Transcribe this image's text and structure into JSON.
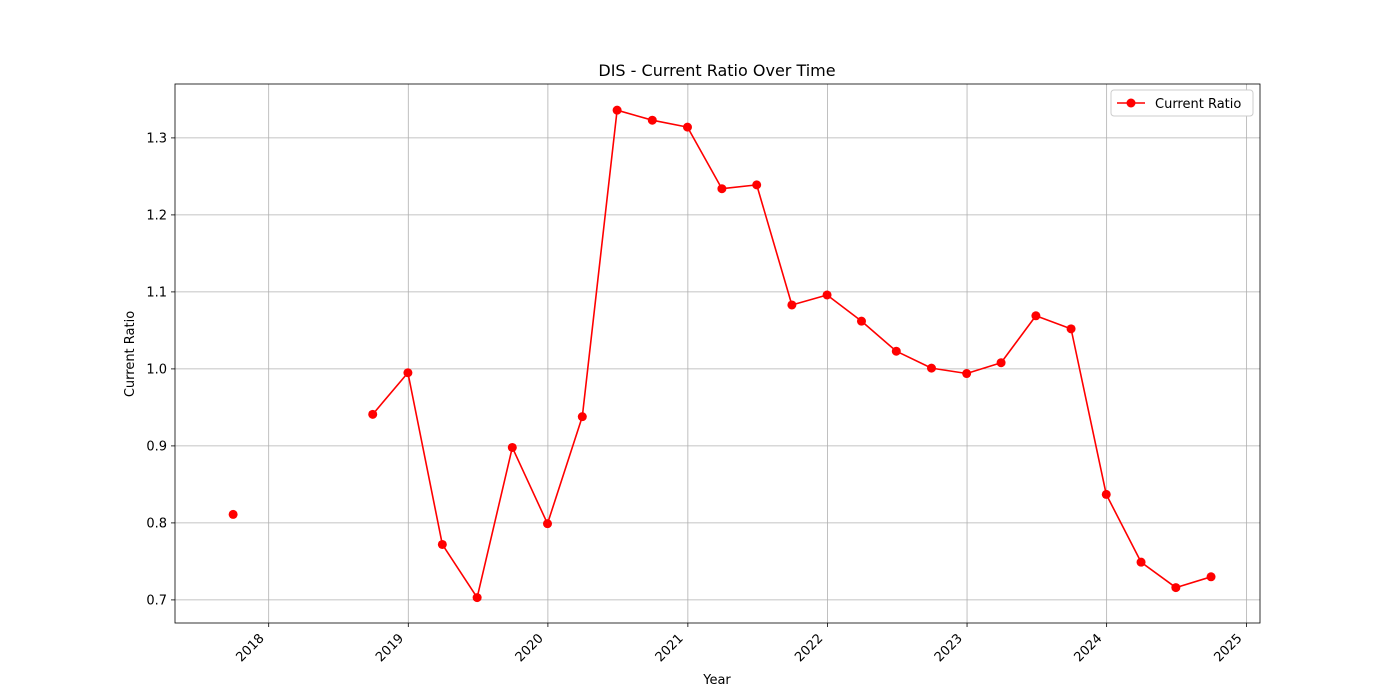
{
  "chart_data": {
    "type": "line",
    "title": "DIS - Current Ratio Over Time",
    "xlabel": "Year",
    "ylabel": "Current Ratio",
    "x_ticks": [
      "2018",
      "2019",
      "2020",
      "2021",
      "2022",
      "2023",
      "2024",
      "2025"
    ],
    "y_ticks": [
      "0.7",
      "0.8",
      "0.9",
      "1.0",
      "1.1",
      "1.2",
      "1.3"
    ],
    "ylim": [
      0.67,
      1.37
    ],
    "xlim": [
      "2017-05-01",
      "2025-02-05"
    ],
    "grid": true,
    "legend_position": "top-right",
    "line_color": "#ff0000",
    "series": [
      {
        "name": "Current Ratio",
        "points": [
          {
            "x": "2017-09-30",
            "y": 0.811
          },
          {
            "x": "2018-03-31",
            "y": null
          },
          {
            "x": "2018-09-30",
            "y": 0.941
          },
          {
            "x": "2018-12-31",
            "y": 0.995
          },
          {
            "x": "2019-03-31",
            "y": 0.772
          },
          {
            "x": "2019-06-30",
            "y": 0.703
          },
          {
            "x": "2019-09-30",
            "y": 0.898
          },
          {
            "x": "2019-12-31",
            "y": 0.799
          },
          {
            "x": "2020-03-31",
            "y": 0.938
          },
          {
            "x": "2020-06-30",
            "y": 1.336
          },
          {
            "x": "2020-09-30",
            "y": 1.323
          },
          {
            "x": "2020-12-31",
            "y": 1.314
          },
          {
            "x": "2021-03-31",
            "y": 1.234
          },
          {
            "x": "2021-06-30",
            "y": 1.239
          },
          {
            "x": "2021-09-30",
            "y": 1.083
          },
          {
            "x": "2021-12-31",
            "y": 1.096
          },
          {
            "x": "2022-03-31",
            "y": 1.062
          },
          {
            "x": "2022-06-30",
            "y": 1.023
          },
          {
            "x": "2022-09-30",
            "y": 1.001
          },
          {
            "x": "2022-12-31",
            "y": 0.994
          },
          {
            "x": "2023-03-31",
            "y": 1.008
          },
          {
            "x": "2023-06-30",
            "y": 1.069
          },
          {
            "x": "2023-09-30",
            "y": 1.052
          },
          {
            "x": "2023-12-31",
            "y": 0.837
          },
          {
            "x": "2024-03-31",
            "y": 0.749
          },
          {
            "x": "2024-06-30",
            "y": 0.716
          },
          {
            "x": "2024-09-30",
            "y": 0.73
          }
        ]
      }
    ]
  }
}
